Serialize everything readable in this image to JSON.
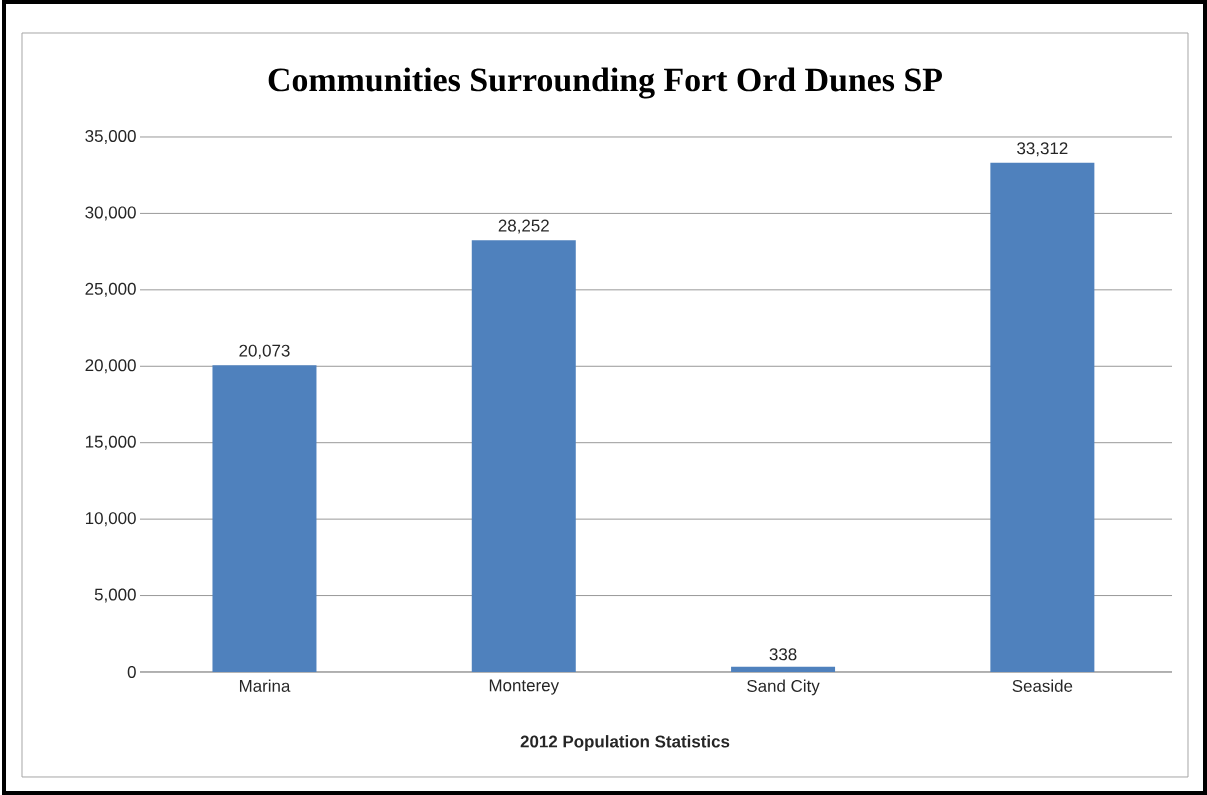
{
  "chart_data": {
    "type": "bar",
    "title": "Communities Surrounding Fort Ord Dunes SP",
    "xlabel": "2012 Population Statistics",
    "categories": [
      "Marina",
      "Monterey",
      "Sand City",
      "Seaside"
    ],
    "values": [
      20073,
      28252,
      338,
      33312
    ],
    "value_labels": [
      "20,073",
      "28,252",
      "338",
      "33,312"
    ],
    "color": "#4f81bd",
    "ylim": [
      0,
      35000
    ],
    "yticks": [
      {
        "value": 0,
        "label": "0"
      },
      {
        "value": 5000,
        "label": "5,000"
      },
      {
        "value": 10000,
        "label": "10,000"
      },
      {
        "value": 15000,
        "label": "15,000"
      },
      {
        "value": 20000,
        "label": "20,000"
      },
      {
        "value": 25000,
        "label": "25,000"
      },
      {
        "value": 30000,
        "label": "30,000"
      },
      {
        "value": 35000,
        "label": "35,000"
      }
    ],
    "grid": "y"
  }
}
